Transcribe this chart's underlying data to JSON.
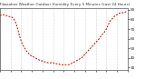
{
  "title": "Milwaukee Weather Outdoor Humidity Every 5 Minutes (Last 24 Hours)",
  "background_color": "#ffffff",
  "plot_bg_color": "#ffffff",
  "grid_color": "#aaaaaa",
  "line_color": "#cc0000",
  "ylim": [
    28,
    92
  ],
  "xlim": [
    0,
    288
  ],
  "y_ticks": [
    30,
    40,
    50,
    60,
    70,
    80,
    90
  ],
  "y_tick_labels": [
    "30",
    "40",
    "50",
    "60",
    "70",
    "80",
    "90"
  ],
  "data_x": [
    0,
    4,
    8,
    12,
    16,
    20,
    24,
    28,
    32,
    36,
    40,
    44,
    48,
    52,
    56,
    60,
    64,
    68,
    72,
    76,
    80,
    84,
    88,
    92,
    96,
    100,
    104,
    108,
    112,
    116,
    120,
    124,
    128,
    132,
    136,
    140,
    144,
    148,
    152,
    156,
    160,
    164,
    168,
    172,
    176,
    180,
    184,
    188,
    192,
    196,
    200,
    204,
    208,
    212,
    216,
    220,
    224,
    228,
    232,
    236,
    240,
    244,
    248,
    252,
    256,
    260,
    264,
    268,
    272,
    276,
    280,
    284,
    288
  ],
  "data_y": [
    84,
    85,
    85,
    84,
    84,
    83,
    83,
    82,
    80,
    76,
    70,
    63,
    57,
    53,
    50,
    47,
    45,
    43,
    42,
    41,
    40,
    39,
    38,
    37,
    37,
    36,
    36,
    35,
    35,
    35,
    35,
    34,
    34,
    34,
    33,
    33,
    33,
    33,
    33,
    33,
    34,
    35,
    36,
    37,
    38,
    39,
    40,
    42,
    44,
    46,
    48,
    50,
    52,
    54,
    56,
    58,
    60,
    63,
    65,
    67,
    70,
    74,
    78,
    80,
    82,
    84,
    85,
    86,
    87,
    87,
    87,
    88,
    88
  ],
  "x_tick_positions": [
    0,
    24,
    48,
    72,
    96,
    120,
    144,
    168,
    192,
    216,
    240,
    264,
    288
  ]
}
